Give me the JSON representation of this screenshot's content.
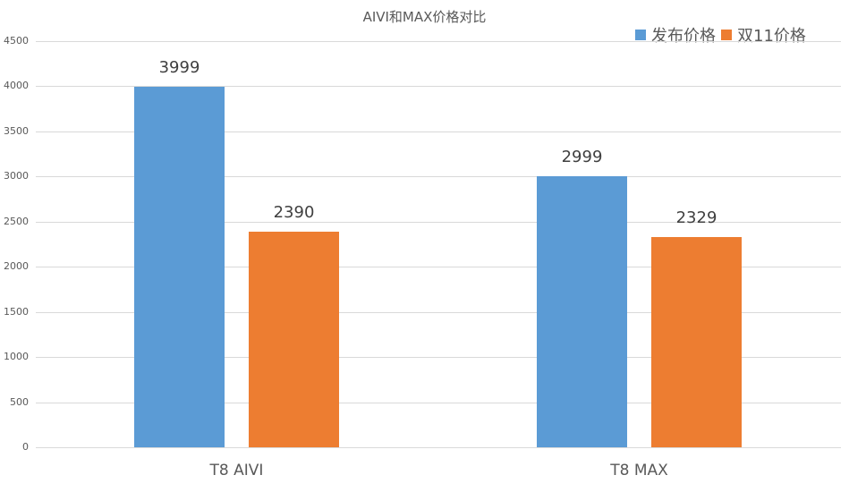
{
  "chart_data": {
    "type": "bar",
    "title": "AIVI和MAX价格对比",
    "categories": [
      "T8 AIVI",
      "T8 MAX"
    ],
    "series": [
      {
        "name": "发布价格",
        "color": "#5B9BD5",
        "values": [
          3999,
          2999
        ]
      },
      {
        "name": "双11价格",
        "color": "#ED7D31",
        "values": [
          2390,
          2329
        ]
      }
    ],
    "xlabel": "",
    "ylabel": "",
    "ylim": [
      0,
      4500
    ],
    "yticks": [
      0,
      500,
      1000,
      1500,
      2000,
      2500,
      3000,
      3500,
      4000,
      4500
    ],
    "grid": true,
    "legend_position": "top-right",
    "data_labels": true
  },
  "labels": {
    "title": "AIVI和MAX价格对比",
    "legend": [
      "发布价格",
      "双11价格"
    ],
    "categories": [
      "T8 AIVI",
      "T8 MAX"
    ],
    "yticks": [
      "0",
      "500",
      "1000",
      "1500",
      "2000",
      "2500",
      "3000",
      "3500",
      "4000",
      "4500"
    ],
    "values": [
      "3999",
      "2390",
      "2999",
      "2329"
    ]
  }
}
